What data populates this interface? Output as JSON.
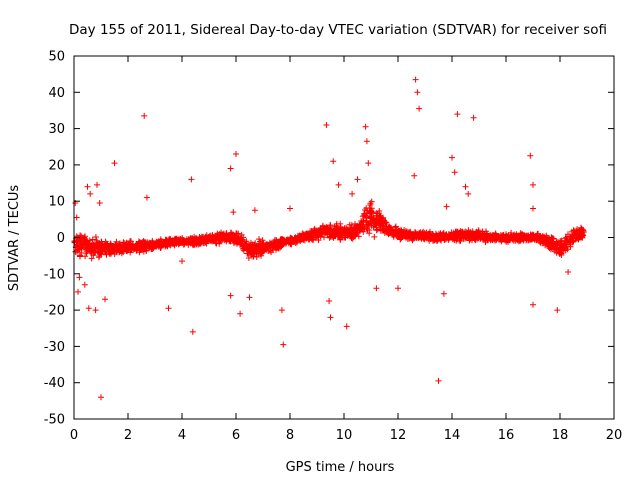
{
  "chart_data": {
    "type": "scatter",
    "title": "Day 155 of 2011, Sidereal Day-to-day VTEC variation (SDTVAR) for receiver sofi",
    "xlabel": "GPS time / hours",
    "ylabel": "SDTVAR / TECUs",
    "xlim": [
      0,
      20
    ],
    "ylim": [
      -50,
      50
    ],
    "xticks": [
      "0",
      "2",
      "4",
      "6",
      "8",
      "10",
      "12",
      "14",
      "16",
      "18",
      "20"
    ],
    "yticks": [
      "50",
      "40",
      "30",
      "20",
      "10",
      "0",
      "-10",
      "-20",
      "-30",
      "-40",
      "-50"
    ],
    "grid": false,
    "marker": "+",
    "color": "#ff0000",
    "band_profile": {
      "description": "dense cloud of points; centre and half-width (TECU) of the main band vs GPS hour",
      "x": [
        0.0,
        0.3,
        0.6,
        1.0,
        1.5,
        2.0,
        2.5,
        3.0,
        3.5,
        4.0,
        4.5,
        5.0,
        5.5,
        6.0,
        6.5,
        7.0,
        7.5,
        8.0,
        8.5,
        9.0,
        9.5,
        10.0,
        10.5,
        11.0,
        11.5,
        12.0,
        12.5,
        13.0,
        13.5,
        14.0,
        14.5,
        15.0,
        15.5,
        16.0,
        16.5,
        17.0,
        17.5,
        18.0,
        18.5,
        18.9
      ],
      "center": [
        -2.0,
        -2.5,
        -2.5,
        -3.0,
        -3.0,
        -2.5,
        -2.5,
        -2.0,
        -1.5,
        -1.0,
        -1.0,
        -0.5,
        0.0,
        0.0,
        -3.5,
        -3.0,
        -2.0,
        -1.0,
        0.0,
        1.0,
        2.0,
        1.0,
        2.0,
        6.0,
        3.0,
        1.0,
        0.5,
        0.5,
        0.0,
        0.5,
        0.5,
        0.5,
        0.0,
        0.0,
        0.0,
        0.0,
        -1.0,
        -3.0,
        0.0,
        1.5
      ],
      "half_width": [
        4.0,
        5.0,
        4.5,
        3.0,
        2.5,
        2.5,
        2.0,
        1.5,
        1.5,
        1.5,
        1.5,
        1.5,
        2.0,
        2.5,
        3.0,
        3.0,
        2.0,
        1.5,
        1.5,
        2.0,
        3.0,
        3.0,
        3.0,
        6.0,
        3.0,
        2.0,
        1.5,
        1.5,
        1.5,
        1.5,
        2.0,
        2.0,
        1.5,
        1.5,
        1.5,
        1.5,
        2.0,
        3.5,
        3.0,
        2.0
      ]
    },
    "outliers": [
      [
        0.05,
        9.5
      ],
      [
        0.1,
        5.5
      ],
      [
        0.15,
        -15.0
      ],
      [
        0.2,
        -11.0
      ],
      [
        0.4,
        -13.0
      ],
      [
        0.5,
        14.0
      ],
      [
        0.55,
        -19.5
      ],
      [
        0.6,
        12.0
      ],
      [
        0.8,
        -20.0
      ],
      [
        0.85,
        14.5
      ],
      [
        0.95,
        9.5
      ],
      [
        1.0,
        -44.0
      ],
      [
        1.15,
        -17.0
      ],
      [
        1.5,
        20.5
      ],
      [
        2.6,
        33.5
      ],
      [
        2.7,
        11.0
      ],
      [
        3.5,
        -19.5
      ],
      [
        4.0,
        -6.5
      ],
      [
        4.35,
        16.0
      ],
      [
        4.4,
        -26.0
      ],
      [
        5.8,
        19.0
      ],
      [
        5.8,
        -16.0
      ],
      [
        5.9,
        7.0
      ],
      [
        6.0,
        23.0
      ],
      [
        6.15,
        -21.0
      ],
      [
        6.5,
        -16.5
      ],
      [
        6.7,
        7.5
      ],
      [
        7.7,
        -20.0
      ],
      [
        7.75,
        -29.5
      ],
      [
        8.0,
        8.0
      ],
      [
        9.35,
        31.0
      ],
      [
        9.45,
        -17.5
      ],
      [
        9.5,
        -22.0
      ],
      [
        9.6,
        21.0
      ],
      [
        9.8,
        14.5
      ],
      [
        10.1,
        -24.5
      ],
      [
        10.3,
        12.0
      ],
      [
        10.5,
        16.0
      ],
      [
        10.8,
        30.5
      ],
      [
        10.85,
        26.5
      ],
      [
        10.9,
        20.5
      ],
      [
        11.2,
        -14.0
      ],
      [
        12.0,
        -14.0
      ],
      [
        12.6,
        17.0
      ],
      [
        12.65,
        43.5
      ],
      [
        12.72,
        40.0
      ],
      [
        12.78,
        35.5
      ],
      [
        13.5,
        -39.5
      ],
      [
        13.7,
        -15.5
      ],
      [
        13.8,
        8.5
      ],
      [
        14.0,
        22.0
      ],
      [
        14.1,
        18.0
      ],
      [
        14.2,
        34.0
      ],
      [
        14.8,
        33.0
      ],
      [
        14.5,
        14.0
      ],
      [
        14.6,
        12.0
      ],
      [
        16.9,
        22.5
      ],
      [
        17.0,
        14.5
      ],
      [
        17.0,
        8.0
      ],
      [
        17.0,
        -18.5
      ],
      [
        17.9,
        -20.0
      ],
      [
        18.3,
        -9.5
      ]
    ]
  }
}
